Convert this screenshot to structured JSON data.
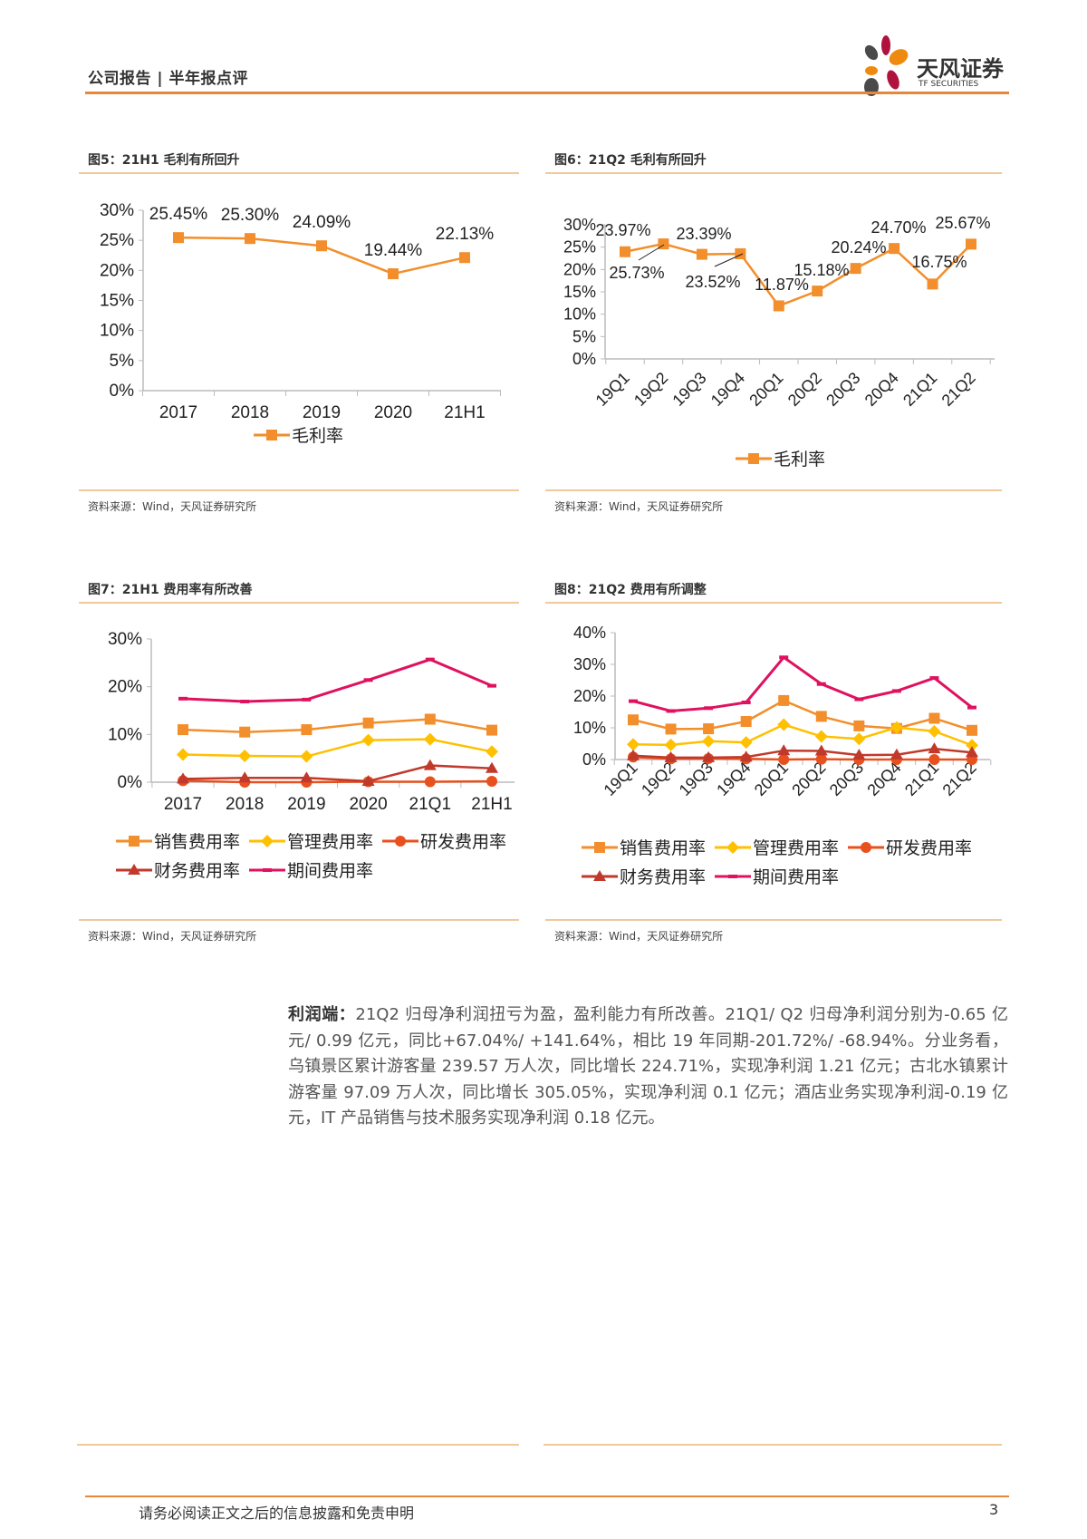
{
  "header": {
    "title": "公司报告 | 半年报点评",
    "logo_text": "天风证券",
    "logo_subtext": "TF SECURITIES"
  },
  "colors": {
    "accent": "#e8873a",
    "sales": "#f28e2b",
    "admin": "#ffc000",
    "rd": "#e8501e",
    "finance": "#c0392b",
    "period": "#e0115f"
  },
  "figures": [
    {
      "title": "图5：21H1 毛利有所回升",
      "source": "资料来源：Wind，天风证券研究所"
    },
    {
      "title": "图6：21Q2 毛利有所回升",
      "source": "资料来源：Wind，天风证券研究所"
    },
    {
      "title": "图7：21H1 费用率有所改善",
      "source": "资料来源：Wind，天风证券研究所"
    },
    {
      "title": "图8：21Q2 费用有所调整",
      "source": "资料来源：Wind，天风证券研究所"
    }
  ],
  "chart_data": [
    {
      "type": "line",
      "categories": [
        "2017",
        "2018",
        "2019",
        "2020",
        "21H1"
      ],
      "yticks": [
        "0%",
        "5%",
        "10%",
        "15%",
        "20%",
        "25%",
        "30%"
      ],
      "ylim": [
        0,
        30
      ],
      "series": [
        {
          "name": "毛利率",
          "values": [
            25.45,
            25.3,
            24.09,
            19.44,
            22.13
          ],
          "labels": [
            "25.45%",
            "25.30%",
            "24.09%",
            "19.44%",
            "22.13%"
          ],
          "marker": "square",
          "color": "#f28e2b"
        }
      ],
      "legend": "bottom",
      "grid": false
    },
    {
      "type": "line",
      "categories": [
        "19Q1",
        "19Q2",
        "19Q3",
        "19Q4",
        "20Q1",
        "20Q2",
        "20Q3",
        "20Q4",
        "21Q1",
        "21Q2"
      ],
      "yticks": [
        "0%",
        "5%",
        "10%",
        "15%",
        "20%",
        "25%",
        "30%"
      ],
      "ylim": [
        0,
        30
      ],
      "series": [
        {
          "name": "毛利率",
          "values": [
            23.97,
            25.73,
            23.39,
            23.52,
            11.87,
            15.18,
            20.24,
            24.7,
            16.75,
            25.67
          ],
          "labels": [
            "23.97%",
            "25.73%",
            "23.39%",
            "23.52%",
            "11.87%",
            "15.18%",
            "20.24%",
            "24.70%",
            "16.75%",
            "25.67%"
          ],
          "marker": "square",
          "color": "#f28e2b"
        }
      ],
      "legend": "bottom",
      "grid": false
    },
    {
      "type": "line",
      "categories": [
        "2017",
        "2018",
        "2019",
        "2020",
        "21Q1",
        "21H1"
      ],
      "yticks": [
        "0%",
        "10%",
        "20%",
        "30%"
      ],
      "ylim": [
        0,
        30
      ],
      "series": [
        {
          "name": "销售费用率",
          "values": [
            11.0,
            10.5,
            11.0,
            12.4,
            13.2,
            10.9
          ],
          "marker": "square",
          "color": "#f28e2b"
        },
        {
          "name": "管理费用率",
          "values": [
            5.8,
            5.5,
            5.4,
            8.8,
            9.0,
            6.4
          ],
          "marker": "diamond",
          "color": "#ffc000"
        },
        {
          "name": "研发费用率",
          "values": [
            0.3,
            0.0,
            0.0,
            0.1,
            0.1,
            0.2
          ],
          "marker": "circle",
          "color": "#e8501e"
        },
        {
          "name": "财务费用率",
          "values": [
            0.7,
            0.9,
            0.9,
            0.2,
            3.5,
            2.9
          ],
          "marker": "triangle",
          "color": "#c0392b"
        },
        {
          "name": "期间费用率",
          "values": [
            17.5,
            16.9,
            17.3,
            21.4,
            25.7,
            20.2
          ],
          "marker": "dash",
          "color": "#e0115f"
        }
      ],
      "legend": "bottom",
      "grid": false
    },
    {
      "type": "line",
      "categories": [
        "19Q1",
        "19Q2",
        "19Q3",
        "19Q4",
        "20Q1",
        "20Q2",
        "20Q3",
        "20Q4",
        "21Q1",
        "21Q2"
      ],
      "yticks": [
        "0%",
        "10%",
        "20%",
        "30%",
        "40%"
      ],
      "ylim": [
        0,
        40
      ],
      "series": [
        {
          "name": "销售费用率",
          "values": [
            12.5,
            9.6,
            9.7,
            12.0,
            18.6,
            13.6,
            10.6,
            9.8,
            13.0,
            9.2
          ],
          "marker": "square",
          "color": "#f28e2b"
        },
        {
          "name": "管理费用率",
          "values": [
            4.8,
            4.6,
            5.8,
            5.4,
            11.0,
            7.3,
            6.5,
            10.1,
            8.9,
            4.5
          ],
          "marker": "diamond",
          "color": "#ffc000"
        },
        {
          "name": "研发费用率",
          "values": [
            0.8,
            0.2,
            0.3,
            0.2,
            0.0,
            0.1,
            0.0,
            0.0,
            0.0,
            0.0
          ],
          "marker": "circle",
          "color": "#e8501e"
        },
        {
          "name": "财务费用率",
          "values": [
            1.2,
            0.6,
            0.6,
            0.8,
            2.8,
            2.7,
            1.4,
            1.5,
            3.4,
            2.2
          ],
          "marker": "triangle",
          "color": "#c0392b"
        },
        {
          "name": "期间费用率",
          "values": [
            18.4,
            15.3,
            16.2,
            18.0,
            32.2,
            23.8,
            19.0,
            21.6,
            25.7,
            16.4
          ],
          "marker": "dash",
          "color": "#e0115f"
        }
      ],
      "legend": "bottom",
      "grid": false
    }
  ],
  "body": {
    "lead": "利润端：",
    "text": "21Q2 归母净利润扭亏为盈，盈利能力有所改善。21Q1/ Q2 归母净利润分别为-0.65 亿元/ 0.99 亿元，同比+67.04%/ +141.64%，相比 19 年同期-201.72%/ -68.94%。分业务看，乌镇景区累计游客量 239.57 万人次，同比增长 224.71%，实现净利润 1.21 亿元；古北水镇累计游客量 97.09 万人次，同比增长 305.05%，实现净利润 0.1 亿元；酒店业务实现净利润-0.19 亿元，IT 产品销售与技术服务实现净利润 0.18 亿元。"
  },
  "footer": {
    "disclaimer": "请务必阅读正文之后的信息披露和免责申明",
    "page": "3"
  }
}
